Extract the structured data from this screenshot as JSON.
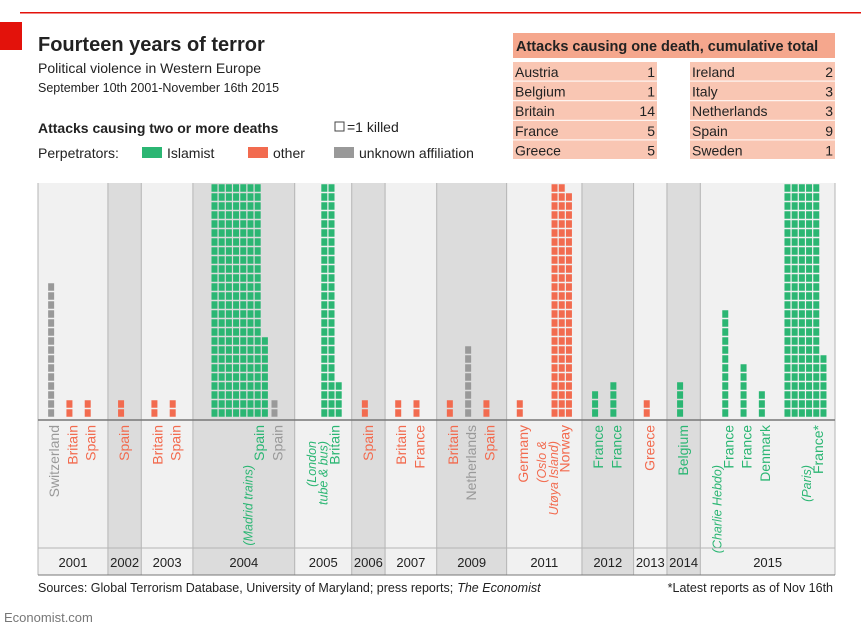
{
  "title": "Fourteen years of terror",
  "subtitle": "Political violence in Western Europe",
  "date_range": "September 10th 2001-November 16th 2015",
  "legend": {
    "heading": "Attacks causing two or more deaths",
    "unit": "=1 killed",
    "perpetrators_label": "Perpetrators:",
    "items": [
      {
        "name": "Islamist",
        "color": "#2bb673"
      },
      {
        "name": "other",
        "color": "#f26b4f"
      },
      {
        "name": "unknown affiliation",
        "color": "#999999"
      }
    ]
  },
  "single_death_table": {
    "title": "Attacks causing one death, cumulative total",
    "rows": [
      {
        "country": "Austria",
        "value": 1
      },
      {
        "country": "Belgium",
        "value": 1
      },
      {
        "country": "Britain",
        "value": 14
      },
      {
        "country": "France",
        "value": 5
      },
      {
        "country": "Greece",
        "value": 5
      },
      {
        "country": "Ireland",
        "value": 2
      },
      {
        "country": "Italy",
        "value": 3
      },
      {
        "country": "Netherlands",
        "value": 3
      },
      {
        "country": "Spain",
        "value": 9
      },
      {
        "country": "Sweden",
        "value": 1
      }
    ]
  },
  "chart_data": {
    "type": "waffle",
    "groups": [
      {
        "year": "2001",
        "attacks": [
          {
            "label": "Switzerland",
            "color": "#999999",
            "value": 15
          },
          {
            "label": "Britain",
            "color": "#f26b4f",
            "value": 2
          },
          {
            "label": "Spain",
            "color": "#f26b4f",
            "value": 2
          }
        ]
      },
      {
        "year": "2002",
        "attacks": [
          {
            "label": "Spain",
            "color": "#f26b4f",
            "value": 2
          }
        ]
      },
      {
        "year": "2003",
        "attacks": [
          {
            "label": "Britain",
            "color": "#f26b4f",
            "value": 2
          },
          {
            "label": "Spain",
            "color": "#f26b4f",
            "value": 2
          }
        ]
      },
      {
        "year": "2004",
        "attacks": [
          {
            "label": "Spain",
            "note": [
              "(Madrid trains)"
            ],
            "color": "#2bb673",
            "value": 191
          },
          {
            "label": "Spain",
            "color": "#999999",
            "value": 2
          }
        ]
      },
      {
        "year": "2005",
        "attacks": [
          {
            "label": "Britain",
            "note": [
              "(London",
              "tube & bus)"
            ],
            "color": "#2bb673",
            "value": 56
          }
        ]
      },
      {
        "year": "2006",
        "attacks": [
          {
            "label": "Spain",
            "color": "#f26b4f",
            "value": 2
          }
        ]
      },
      {
        "year": "2007",
        "attacks": [
          {
            "label": "Britain",
            "color": "#f26b4f",
            "value": 2
          },
          {
            "label": "France",
            "color": "#f26b4f",
            "value": 2
          }
        ]
      },
      {
        "year": "2009",
        "attacks": [
          {
            "label": "Britain",
            "color": "#f26b4f",
            "value": 2
          },
          {
            "label": "Netherlands",
            "color": "#999999",
            "value": 8
          },
          {
            "label": "Spain",
            "color": "#f26b4f",
            "value": 2
          }
        ]
      },
      {
        "year": "2011",
        "attacks": [
          {
            "label": "Germany",
            "color": "#f26b4f",
            "value": 2
          },
          {
            "label": "Norway",
            "note": [
              "(Oslo &",
              "Utøya Island)"
            ],
            "color": "#f26b4f",
            "value": 77
          }
        ]
      },
      {
        "year": "2012",
        "attacks": [
          {
            "label": "France",
            "color": "#2bb673",
            "value": 3
          },
          {
            "label": "France",
            "color": "#2bb673",
            "value": 4
          }
        ]
      },
      {
        "year": "2013",
        "attacks": [
          {
            "label": "Greece",
            "color": "#f26b4f",
            "value": 2
          }
        ]
      },
      {
        "year": "2014",
        "attacks": [
          {
            "label": "Belgium",
            "color": "#2bb673",
            "value": 4
          }
        ]
      },
      {
        "year": "2015",
        "attacks": [
          {
            "label": "France",
            "note": [
              "(Charlie Hebdo)"
            ],
            "color": "#2bb673",
            "value": 12
          },
          {
            "label": "France",
            "color": "#2bb673",
            "value": 6
          },
          {
            "label": "Denmark",
            "color": "#2bb673",
            "value": 3
          },
          {
            "label": "France*",
            "note": [
              "(Paris)"
            ],
            "color": "#2bb673",
            "value": 137
          }
        ]
      }
    ]
  },
  "footer": {
    "sources": "Sources: Global Terrorism Database, University of Maryland; press reports;",
    "sources_italic": "The Economist",
    "footnote": "*Latest reports as of Nov 16th",
    "brand": "Economist.com"
  }
}
